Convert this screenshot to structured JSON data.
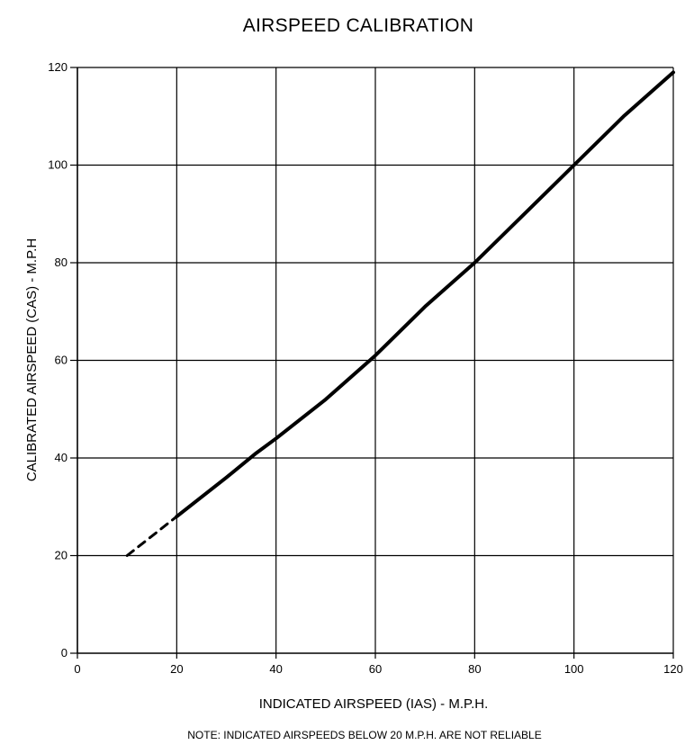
{
  "chart_data": {
    "type": "line",
    "title": "AIRSPEED CALIBRATION",
    "xlabel": "INDICATED AIRSPEED (IAS) - M.P.H.",
    "ylabel": "CALIBRATED AIRSPEED (CAS) - M.P.H",
    "note": "NOTE: INDICATED AIRSPEEDS BELOW 20 M.P.H. ARE NOT RELIABLE",
    "xlim": [
      0,
      120
    ],
    "ylim": [
      0,
      120
    ],
    "xticks": [
      0,
      20,
      40,
      60,
      80,
      100,
      120
    ],
    "yticks": [
      0,
      20,
      40,
      60,
      80,
      100,
      120
    ],
    "grid": true,
    "series": [
      {
        "style": "solid",
        "x": [
          20,
          30,
          36,
          40,
          50,
          60,
          70,
          80,
          90,
          100,
          110,
          120
        ],
        "y": [
          28,
          36,
          41,
          44,
          52,
          61,
          71,
          80,
          90,
          100,
          110,
          119
        ]
      },
      {
        "style": "dashed",
        "x": [
          10,
          15,
          20
        ],
        "y": [
          20,
          24,
          28
        ]
      }
    ]
  }
}
